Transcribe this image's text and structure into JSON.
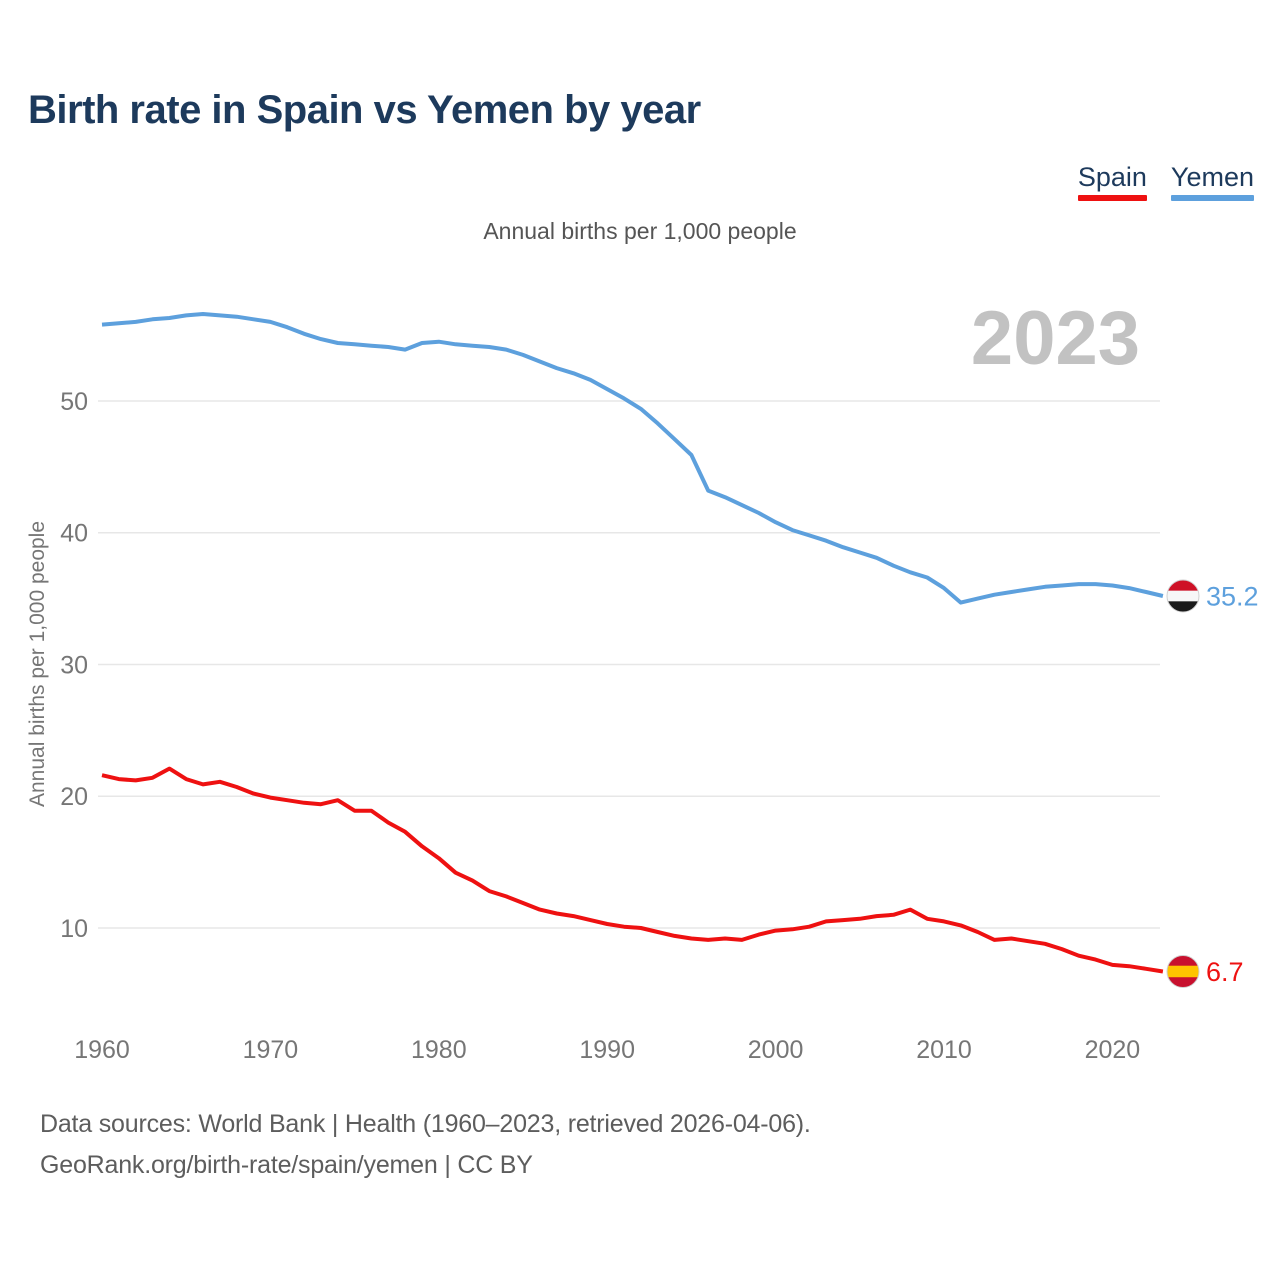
{
  "header": {
    "title": "Birth rate in Spain vs Yemen by year"
  },
  "legend": {
    "items": [
      {
        "label": "Spain",
        "color": "#ee1111"
      },
      {
        "label": "Yemen",
        "color": "#5da0dd"
      }
    ]
  },
  "subtitle": "Annual births per 1,000 people",
  "watermark": "2023",
  "footer": {
    "line1": "Data sources: World Bank | Health (1960–2023, retrieved 2026-04-06).",
    "line2": "GeoRank.org/birth-rate/spain/yemen | CC BY"
  },
  "colors": {
    "title": "#1d3a5c",
    "legend_text": "#1d3a5c",
    "subtitle": "#555555",
    "axis_text": "#767676",
    "grid": "#e7e7e7",
    "watermark": "#c2c2c2",
    "footer": "#5d5d5d",
    "spain_line": "#ee1111",
    "yemen_line": "#5da0dd",
    "flag_ring": "#cfcfcf"
  },
  "flags": {
    "spain": {
      "stripes": [
        "#c8102e",
        "#ffc400",
        "#c8102e"
      ],
      "fractions": [
        0.32,
        0.36,
        0.32
      ]
    },
    "yemen": {
      "stripes": [
        "#ce1126",
        "#f7f7f7",
        "#1a1a1a"
      ],
      "fractions": [
        0.3333,
        0.3334,
        0.3333
      ]
    }
  },
  "chart_data": {
    "type": "line",
    "title": "Birth rate in Spain vs Yemen by year",
    "subtitle": "Annual births per 1,000 people",
    "xlabel": "",
    "ylabel": "Annual births per 1,000 people",
    "xlim": [
      1960,
      2023
    ],
    "ylim": [
      0,
      60
    ],
    "grid": true,
    "legend_position": "top-right",
    "xticks": [
      1960,
      1970,
      1980,
      1990,
      2000,
      2010,
      2020
    ],
    "yticks": [
      10,
      20,
      30,
      40,
      50
    ],
    "x": [
      1960,
      1961,
      1962,
      1963,
      1964,
      1965,
      1966,
      1967,
      1968,
      1969,
      1970,
      1971,
      1972,
      1973,
      1974,
      1975,
      1976,
      1977,
      1978,
      1979,
      1980,
      1981,
      1982,
      1983,
      1984,
      1985,
      1986,
      1987,
      1988,
      1989,
      1990,
      1991,
      1992,
      1993,
      1994,
      1995,
      1996,
      1997,
      1998,
      1999,
      2000,
      2001,
      2002,
      2003,
      2004,
      2005,
      2006,
      2007,
      2008,
      2009,
      2010,
      2011,
      2012,
      2013,
      2014,
      2015,
      2016,
      2017,
      2018,
      2019,
      2020,
      2021,
      2022,
      2023
    ],
    "series": [
      {
        "name": "Yemen",
        "color": "#5da0dd",
        "flag": "yemen",
        "end_label": "35.2",
        "values": [
          55.8,
          55.9,
          56.0,
          56.2,
          56.3,
          56.5,
          56.6,
          56.5,
          56.4,
          56.2,
          56.0,
          55.6,
          55.1,
          54.7,
          54.4,
          54.3,
          54.2,
          54.1,
          53.9,
          54.4,
          54.5,
          54.3,
          54.2,
          54.1,
          53.9,
          53.5,
          53.0,
          52.5,
          52.1,
          51.6,
          50.9,
          50.2,
          49.4,
          48.3,
          47.1,
          45.9,
          43.2,
          42.7,
          42.1,
          41.5,
          40.8,
          40.2,
          39.8,
          39.4,
          38.9,
          38.5,
          38.1,
          37.5,
          37.0,
          36.6,
          35.8,
          34.7,
          35.0,
          35.3,
          35.5,
          35.7,
          35.9,
          36.0,
          36.1,
          36.1,
          36.0,
          35.8,
          35.5,
          35.2
        ]
      },
      {
        "name": "Spain",
        "color": "#ee1111",
        "flag": "spain",
        "end_label": "6.7",
        "values": [
          21.6,
          21.3,
          21.2,
          21.4,
          22.1,
          21.3,
          20.9,
          21.1,
          20.7,
          20.2,
          19.9,
          19.7,
          19.5,
          19.4,
          19.7,
          18.9,
          18.9,
          18.0,
          17.3,
          16.2,
          15.3,
          14.2,
          13.6,
          12.8,
          12.4,
          11.9,
          11.4,
          11.1,
          10.9,
          10.6,
          10.3,
          10.1,
          10.0,
          9.7,
          9.4,
          9.2,
          9.1,
          9.2,
          9.1,
          9.5,
          9.8,
          9.9,
          10.1,
          10.5,
          10.6,
          10.7,
          10.9,
          11.0,
          11.4,
          10.7,
          10.5,
          10.2,
          9.7,
          9.1,
          9.2,
          9.0,
          8.8,
          8.4,
          7.9,
          7.6,
          7.2,
          7.1,
          6.9,
          6.7
        ]
      }
    ]
  }
}
